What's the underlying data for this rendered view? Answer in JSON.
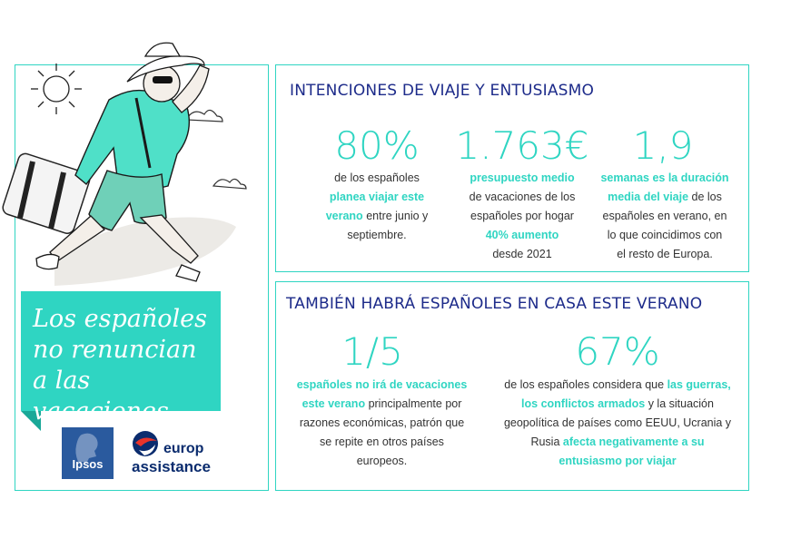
{
  "banner": {
    "title": "Los españoles no renuncian a las vacaciones"
  },
  "top_section": {
    "heading": "INTENCIONES DE VIAJE Y ENTUSIASMO",
    "stat1": {
      "value": "80%",
      "line1": "de los españoles",
      "hl1": "planea viajar este",
      "hl2": "verano",
      "rest": "entre junio y",
      "line4": "septiembre."
    },
    "stat2": {
      "value": "1.763€",
      "hl1": "presupuesto medio",
      "line2": "de vacaciones de los",
      "line3": "españoles por hogar",
      "hl2": "40% aumento",
      "line5": "desde 2021"
    },
    "stat3": {
      "value": "1,9",
      "hl1": "semanas es la duración",
      "hl2": "media del viaje",
      "rest": "de los",
      "line3": "españoles en verano, en",
      "line4": "lo que coincidimos con",
      "line5": "el resto de Europa."
    }
  },
  "bottom_section": {
    "heading": "TAMBIÉN HABRÁ ESPAÑOLES EN CASA ESTE VERANO",
    "stat1": {
      "value": "1/5",
      "hl1": "españoles no irá de vacaciones",
      "hl2": "este verano",
      "rest": "principalmente por",
      "line3": "razones económicas, patrón que",
      "line4": "se repite en otros países",
      "line5": "europeos."
    },
    "stat2": {
      "value": "67%",
      "pre": "de los españoles considera que",
      "hl1": "las guerras,",
      "hl2": "los conflictos armados",
      "rest": "y la situación",
      "line3": "geopolítica de países como EEUU, Ucrania y",
      "pre4": "Rusia",
      "hl3": "afecta negativamente a su",
      "hl4": "entusiasmo por viajar"
    }
  },
  "logos": {
    "ipsos": "Ipsos",
    "europ": "europ",
    "assistance": "assistance"
  },
  "colors": {
    "accent": "#2fd5c2",
    "heading": "#1d2b8a",
    "ipsos_blue": "#2a5a9e",
    "europ_navy": "#0b2c6e",
    "europ_red": "#e8332a"
  }
}
